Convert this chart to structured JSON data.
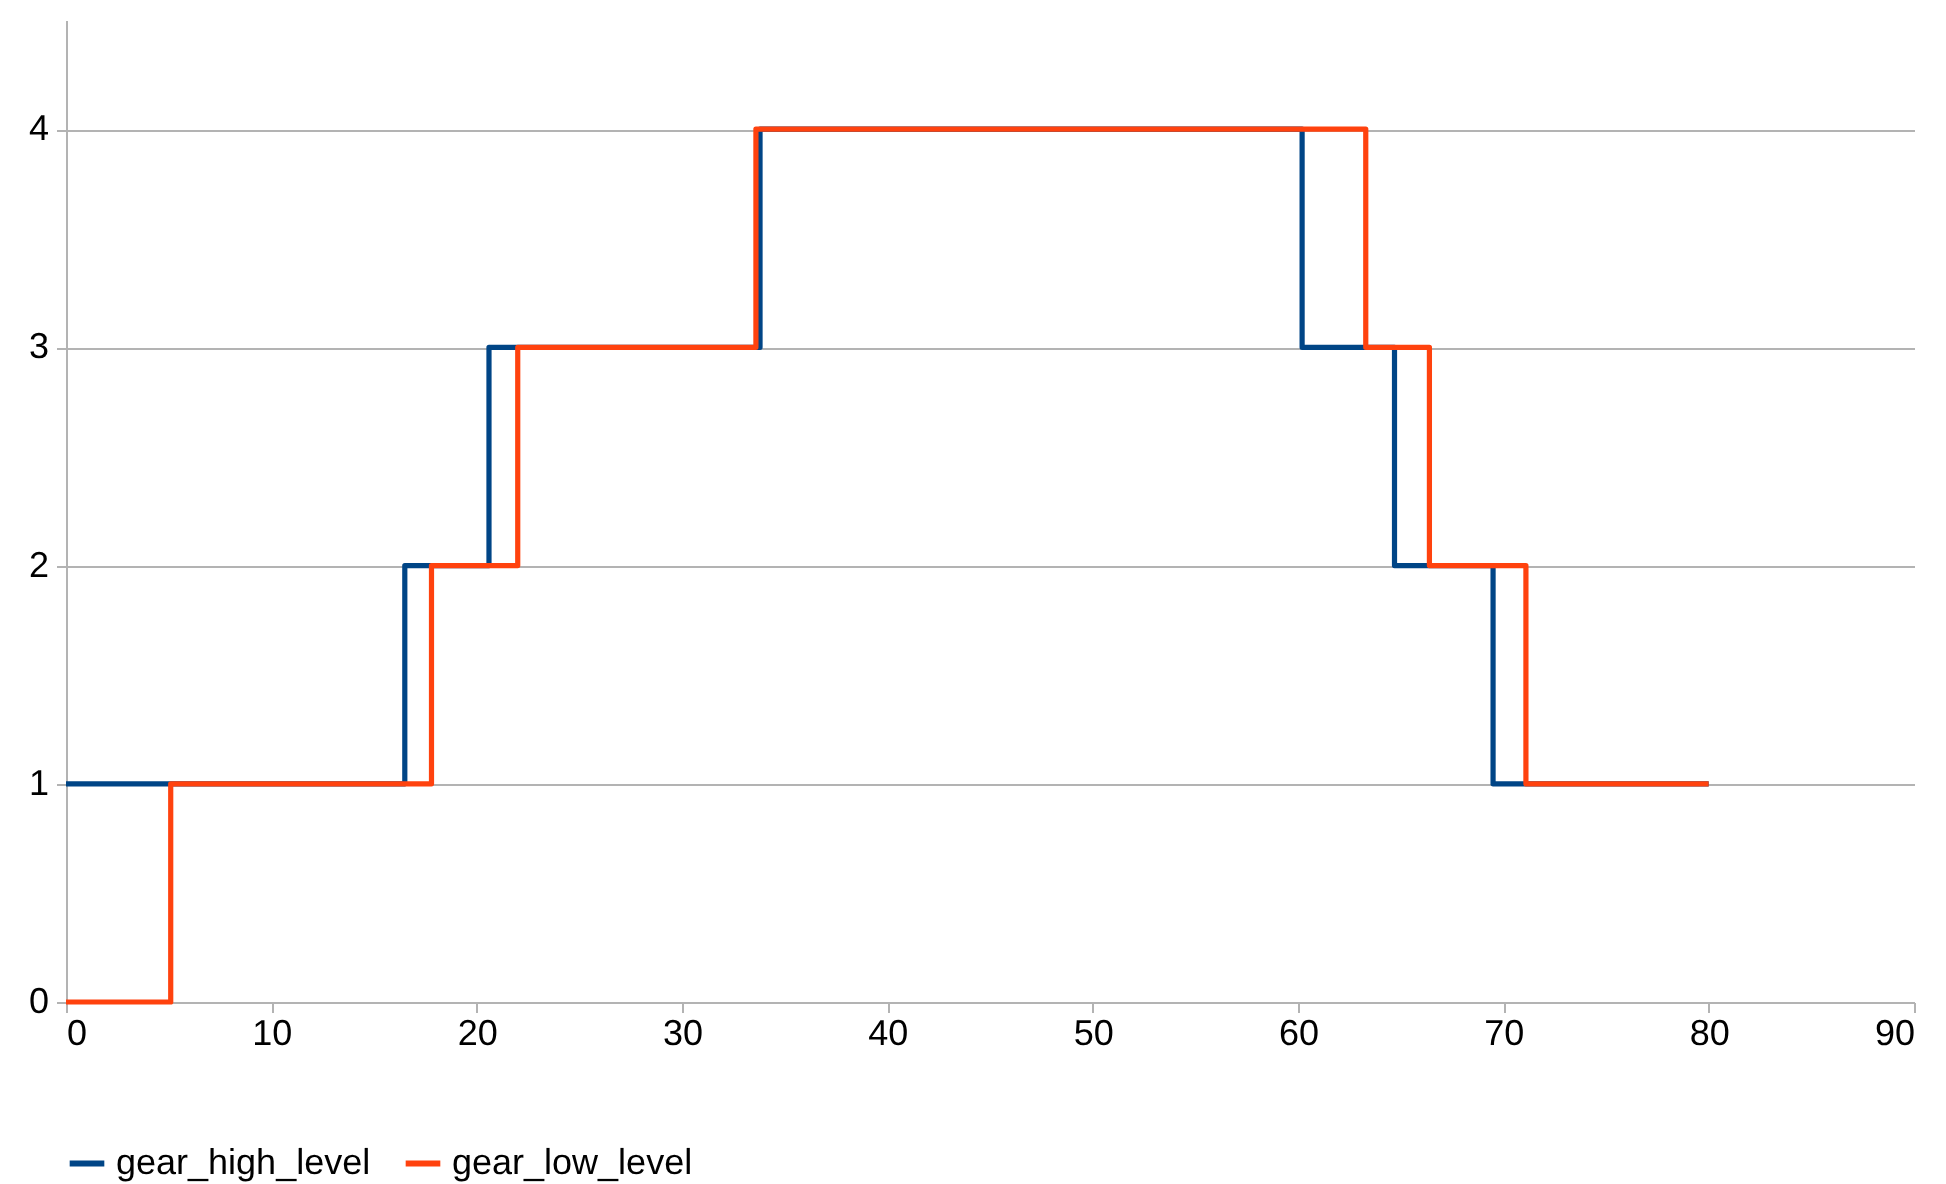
{
  "chart_data": {
    "type": "step",
    "xlim": [
      0,
      90
    ],
    "xticks": [
      0,
      10,
      20,
      30,
      40,
      50,
      60,
      70,
      80,
      90
    ],
    "ylim": [
      0,
      4.5
    ],
    "yticks": [
      0,
      1,
      2,
      3,
      4
    ],
    "grid": "y",
    "legend": "bottom",
    "line_style": "solid",
    "marker": "none",
    "series": [
      {
        "name": "gear_high_level",
        "color": "#004586",
        "x": [
          0,
          16.5,
          20.6,
          33.8,
          60.2,
          64.7,
          69.5,
          80
        ],
        "values": [
          1,
          2,
          3,
          4,
          3,
          2,
          1,
          1
        ]
      },
      {
        "name": "gear_low_level",
        "color": "#ff420e",
        "x": [
          0,
          5.1,
          17.8,
          22.0,
          33.6,
          63.3,
          66.4,
          71.1,
          80
        ],
        "values": [
          0,
          1,
          2,
          3,
          4,
          3,
          2,
          1,
          1
        ]
      }
    ]
  }
}
